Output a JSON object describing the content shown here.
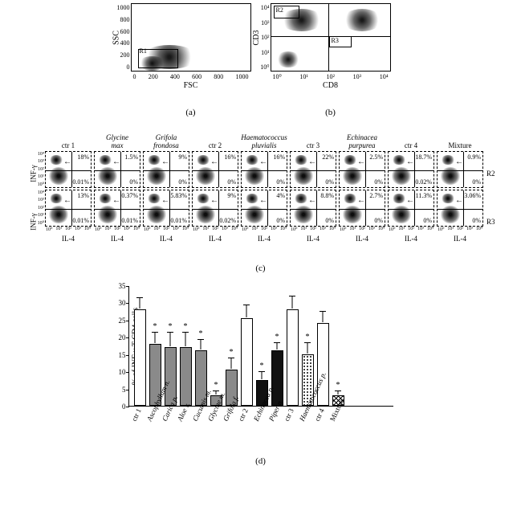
{
  "panel_a": {
    "type": "scatter",
    "x_label": "FSC",
    "y_label": "SSC",
    "x_ticks": [
      "0",
      "200",
      "400",
      "600",
      "800",
      "1000"
    ],
    "y_ticks": [
      "0",
      "200",
      "400",
      "600",
      "800",
      "1000"
    ],
    "gate_label": "R1",
    "letter": "(a)"
  },
  "panel_b": {
    "type": "scatter",
    "x_label": "CD8",
    "y_label": "CD3",
    "x_ticks": [
      "10⁰",
      "10¹",
      "10²",
      "10³",
      "10⁴"
    ],
    "y_ticks": [
      "10⁰",
      "10¹",
      "10²",
      "10³",
      "10⁴"
    ],
    "gate_labels": {
      "r2": "R2",
      "r3": "R3"
    },
    "letter": "(b)"
  },
  "panel_c": {
    "letter": "(c)",
    "y_label": "INF-γ",
    "x_label": "IL-4",
    "log_ticks": [
      "10⁰",
      "10¹",
      "10²",
      "10³",
      "10⁴"
    ],
    "row_gates": [
      "R2",
      "R3"
    ],
    "columns": [
      {
        "title": "ctr 1",
        "italic": false,
        "r2_top": "18%",
        "r2_bot": "0.01%",
        "r3_top": "13%",
        "r3_bot": "0.01%"
      },
      {
        "title": "Glycine\nmax",
        "italic": true,
        "r2_top": "1.5%",
        "r2_bot": "0%",
        "r3_top": "0.37%",
        "r3_bot": "0.01%"
      },
      {
        "title": "Grifola\nfrondosa",
        "italic": true,
        "r2_top": "9%",
        "r2_bot": "0%",
        "r3_top": "5.83%",
        "r3_bot": "0.01%"
      },
      {
        "title": "ctr 2",
        "italic": false,
        "r2_top": "16%",
        "r2_bot": "0%",
        "r3_top": "9%",
        "r3_bot": "0.02%"
      },
      {
        "title": "Haematococcus\npluvialis",
        "italic": true,
        "r2_top": "16%",
        "r2_bot": "0%",
        "r3_top": "4%",
        "r3_bot": "0%"
      },
      {
        "title": "ctr 3",
        "italic": false,
        "r2_top": "22%",
        "r2_bot": "0%",
        "r3_top": "8.8%",
        "r3_bot": "0%"
      },
      {
        "title": "Echinacea\npurpurea",
        "italic": true,
        "r2_top": "2.5%",
        "r2_bot": "0%",
        "r3_top": "2.7%",
        "r3_bot": "0%"
      },
      {
        "title": "ctr 4",
        "italic": false,
        "r2_top": "18.7%",
        "r2_bot": "0.02%",
        "r3_top": "11.3%",
        "r3_bot": "0%"
      },
      {
        "title": "Mixture",
        "italic": false,
        "r2_top": "0.9%",
        "r2_bot": "0%",
        "r3_top": "3.06%",
        "r3_bot": "0%"
      }
    ]
  },
  "panel_d": {
    "type": "bar",
    "letter": "(d)",
    "y_label": "% of INF-γ T CD4 cells",
    "y_max": 35,
    "y_ticks": [
      0,
      5,
      10,
      15,
      20,
      25,
      30,
      35
    ],
    "bars": [
      {
        "label": "ctr 1",
        "italic": false,
        "value": 28,
        "err": 3,
        "fill": "white",
        "star": false
      },
      {
        "label": "Ascophyllum n.",
        "italic": true,
        "value": 18,
        "err": 3,
        "fill": "gray",
        "star": true
      },
      {
        "label": "Carica p.",
        "italic": true,
        "value": 17,
        "err": 4,
        "fill": "gray",
        "star": true
      },
      {
        "label": "Aloe v.",
        "italic": true,
        "value": 17,
        "err": 4,
        "fill": "gray",
        "star": true
      },
      {
        "label": "Cucumis m.",
        "italic": true,
        "value": 16,
        "err": 3,
        "fill": "gray",
        "star": true
      },
      {
        "label": "Glycine m.",
        "italic": true,
        "value": 3,
        "err": 1,
        "fill": "gray",
        "star": true
      },
      {
        "label": "Grifola f.",
        "italic": true,
        "value": 10.5,
        "err": 3,
        "fill": "gray",
        "star": true
      },
      {
        "label": "ctr 2",
        "italic": false,
        "value": 25.5,
        "err": 3.5,
        "fill": "white",
        "star": false
      },
      {
        "label": "Echinacea p.",
        "italic": true,
        "value": 7.5,
        "err": 2,
        "fill": "black",
        "star": true
      },
      {
        "label": "Piper n.",
        "italic": true,
        "value": 16,
        "err": 2,
        "fill": "black",
        "star": true
      },
      {
        "label": "ctr 3",
        "italic": false,
        "value": 28,
        "err": 3.5,
        "fill": "white",
        "star": false
      },
      {
        "label": "Haematococcus p.",
        "italic": true,
        "value": 15,
        "err": 3,
        "fill": "dots",
        "star": true
      },
      {
        "label": "ctr 4",
        "italic": false,
        "value": 24,
        "err": 3,
        "fill": "white",
        "star": false
      },
      {
        "label": "Mixture",
        "italic": false,
        "value": 3,
        "err": 1,
        "fill": "hatch",
        "star": true
      }
    ],
    "colors": {
      "white": "#ffffff",
      "gray": "#8a8a8a",
      "black": "#111111"
    }
  }
}
